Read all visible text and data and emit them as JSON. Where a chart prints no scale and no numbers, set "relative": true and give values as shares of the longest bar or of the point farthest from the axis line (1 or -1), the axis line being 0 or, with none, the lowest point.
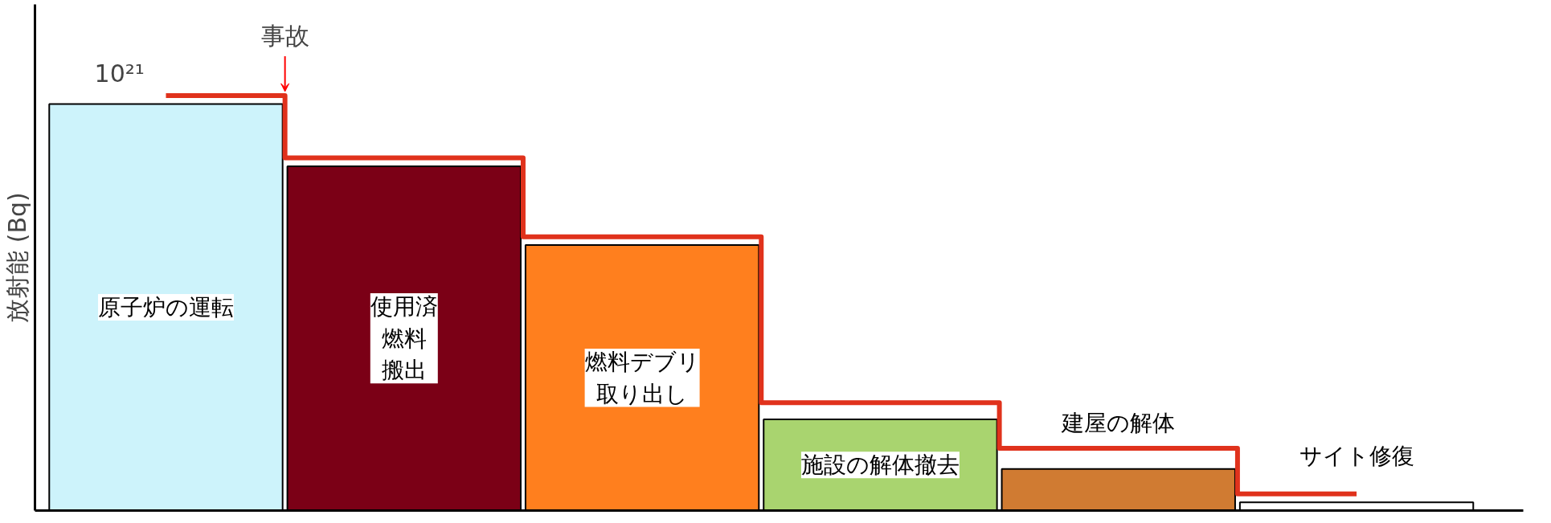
{
  "chart_data": {
    "type": "bar",
    "relative": true,
    "ylabel": "放射能 (Bq)",
    "categories": [
      "原子炉の運転",
      "使用済燃料搬出",
      "燃料デブリ取り出し",
      "施設の解体撤去",
      "建屋の解体",
      "サイト修復"
    ],
    "values": [
      0.98,
      0.83,
      0.64,
      0.22,
      0.1,
      0.02
    ],
    "colors": [
      "#cdf3fb",
      "#7b0016",
      "#ff7f1e",
      "#a9d46f",
      "#d07b32",
      "#ffffff"
    ],
    "series": [
      {
        "type": "step",
        "color": "#e0321c",
        "values": [
          1.0,
          0.85,
          0.66,
          0.26,
          0.15,
          0.04
        ]
      }
    ],
    "annotations": [
      "10²¹",
      "事故"
    ]
  }
}
